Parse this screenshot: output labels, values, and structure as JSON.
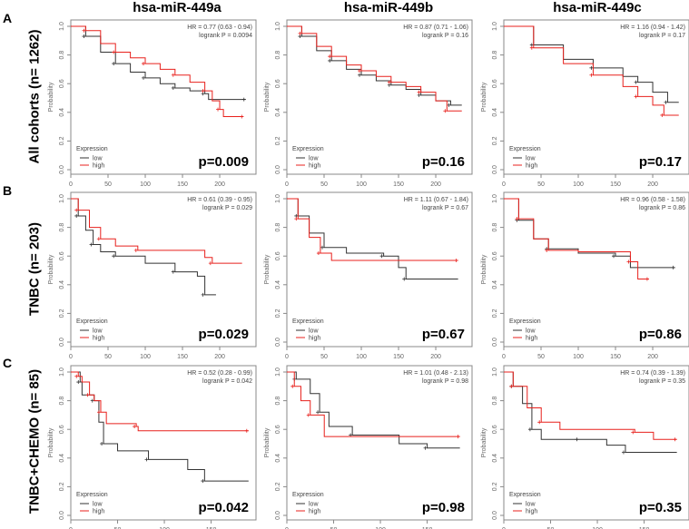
{
  "columns": [
    "hsa-miR-449a",
    "hsa-miR-449b",
    "hsa-miR-449c"
  ],
  "rows": [
    {
      "letter": "A",
      "label": "All cohorts (n= 1262)"
    },
    {
      "letter": "B",
      "label": "TNBC (n= 203)"
    },
    {
      "letter": "C",
      "label": "TNBC+CHEMO (n= 85)"
    }
  ],
  "colors": {
    "low": "#333333",
    "high": "#e8201c"
  },
  "chart_data": [
    {
      "type": "line",
      "row": 0,
      "col": 0,
      "hr": "HR = 0.77 (0.63 - 0.94)",
      "logrank": "logrank P = 0.0094",
      "p": "p=0.009",
      "xticks": [
        0,
        50,
        100,
        150,
        200
      ],
      "xlim": [
        0,
        245
      ],
      "low": [
        [
          0,
          1
        ],
        [
          20,
          0.93
        ],
        [
          40,
          0.82
        ],
        [
          60,
          0.74
        ],
        [
          80,
          0.68
        ],
        [
          100,
          0.64
        ],
        [
          120,
          0.6
        ],
        [
          140,
          0.57
        ],
        [
          160,
          0.55
        ],
        [
          180,
          0.53
        ],
        [
          185,
          0.49
        ],
        [
          235,
          0.49
        ]
      ],
      "high": [
        [
          0,
          1
        ],
        [
          20,
          0.97
        ],
        [
          40,
          0.88
        ],
        [
          60,
          0.82
        ],
        [
          80,
          0.78
        ],
        [
          100,
          0.74
        ],
        [
          120,
          0.7
        ],
        [
          140,
          0.66
        ],
        [
          160,
          0.61
        ],
        [
          180,
          0.55
        ],
        [
          190,
          0.48
        ],
        [
          200,
          0.42
        ],
        [
          205,
          0.37
        ],
        [
          232,
          0.37
        ]
      ]
    },
    {
      "type": "line",
      "row": 0,
      "col": 1,
      "hr": "HR = 0.87 (0.71 - 1.06)",
      "logrank": "logrank P = 0.16",
      "p": "p=0.16",
      "xticks": [
        0,
        50,
        100,
        150,
        200
      ],
      "xlim": [
        0,
        245
      ],
      "low": [
        [
          0,
          1
        ],
        [
          20,
          0.93
        ],
        [
          40,
          0.83
        ],
        [
          60,
          0.76
        ],
        [
          80,
          0.7
        ],
        [
          100,
          0.66
        ],
        [
          120,
          0.62
        ],
        [
          140,
          0.59
        ],
        [
          160,
          0.56
        ],
        [
          180,
          0.52
        ],
        [
          200,
          0.48
        ],
        [
          220,
          0.45
        ],
        [
          235,
          0.45
        ]
      ],
      "high": [
        [
          0,
          1
        ],
        [
          20,
          0.95
        ],
        [
          40,
          0.86
        ],
        [
          60,
          0.79
        ],
        [
          80,
          0.73
        ],
        [
          100,
          0.69
        ],
        [
          120,
          0.65
        ],
        [
          140,
          0.61
        ],
        [
          160,
          0.58
        ],
        [
          180,
          0.54
        ],
        [
          200,
          0.48
        ],
        [
          215,
          0.41
        ],
        [
          235,
          0.41
        ]
      ]
    },
    {
      "type": "line",
      "row": 0,
      "col": 2,
      "hr": "HR = 1.16 (0.94 - 1.42)",
      "logrank": "logrank P = 0.17",
      "p": "p=0.17",
      "xticks": [
        0,
        50,
        100,
        150,
        200
      ],
      "xlim": [
        0,
        245
      ],
      "low": [
        [
          0,
          1
        ],
        [
          40,
          0.87
        ],
        [
          80,
          0.77
        ],
        [
          120,
          0.71
        ],
        [
          160,
          0.65
        ],
        [
          180,
          0.61
        ],
        [
          200,
          0.54
        ],
        [
          220,
          0.47
        ],
        [
          235,
          0.47
        ]
      ],
      "high": [
        [
          0,
          1
        ],
        [
          40,
          0.85
        ],
        [
          80,
          0.74
        ],
        [
          120,
          0.66
        ],
        [
          160,
          0.58
        ],
        [
          180,
          0.51
        ],
        [
          200,
          0.45
        ],
        [
          215,
          0.38
        ],
        [
          235,
          0.38
        ]
      ]
    },
    {
      "type": "line",
      "row": 1,
      "col": 0,
      "hr": "HR = 0.61 (0.39 - 0.95)",
      "logrank": "logrank P = 0.029",
      "p": "p=0.029",
      "xticks": [
        0,
        50,
        100,
        150,
        200
      ],
      "xlim": [
        0,
        245
      ],
      "low": [
        [
          0,
          1
        ],
        [
          10,
          0.88
        ],
        [
          20,
          0.78
        ],
        [
          30,
          0.68
        ],
        [
          40,
          0.63
        ],
        [
          60,
          0.6
        ],
        [
          100,
          0.55
        ],
        [
          140,
          0.49
        ],
        [
          170,
          0.46
        ],
        [
          180,
          0.33
        ],
        [
          195,
          0.33
        ]
      ],
      "high": [
        [
          0,
          1
        ],
        [
          10,
          0.92
        ],
        [
          25,
          0.8
        ],
        [
          40,
          0.72
        ],
        [
          60,
          0.67
        ],
        [
          90,
          0.64
        ],
        [
          180,
          0.59
        ],
        [
          190,
          0.55
        ],
        [
          230,
          0.55
        ]
      ]
    },
    {
      "type": "line",
      "row": 1,
      "col": 1,
      "hr": "HR = 1.11 (0.67 - 1.84)",
      "logrank": "logrank P = 0.67",
      "p": "p=0.67",
      "xticks": [
        0,
        50,
        100,
        150,
        200
      ],
      "xlim": [
        0,
        245
      ],
      "low": [
        [
          0,
          1
        ],
        [
          15,
          0.88
        ],
        [
          30,
          0.76
        ],
        [
          50,
          0.66
        ],
        [
          80,
          0.62
        ],
        [
          130,
          0.6
        ],
        [
          150,
          0.52
        ],
        [
          160,
          0.44
        ],
        [
          230,
          0.44
        ]
      ],
      "high": [
        [
          0,
          1
        ],
        [
          15,
          0.86
        ],
        [
          30,
          0.73
        ],
        [
          45,
          0.62
        ],
        [
          60,
          0.57
        ],
        [
          230,
          0.57
        ]
      ]
    },
    {
      "type": "line",
      "row": 1,
      "col": 2,
      "hr": "HR = 0.96 (0.58 - 1.58)",
      "logrank": "logrank P = 0.86",
      "p": "p=0.86",
      "xticks": [
        0,
        50,
        100,
        150,
        200
      ],
      "xlim": [
        0,
        245
      ],
      "low": [
        [
          0,
          1
        ],
        [
          20,
          0.85
        ],
        [
          40,
          0.72
        ],
        [
          60,
          0.65
        ],
        [
          100,
          0.62
        ],
        [
          150,
          0.6
        ],
        [
          170,
          0.52
        ],
        [
          230,
          0.52
        ]
      ],
      "high": [
        [
          0,
          1
        ],
        [
          20,
          0.86
        ],
        [
          40,
          0.72
        ],
        [
          60,
          0.64
        ],
        [
          100,
          0.63
        ],
        [
          170,
          0.56
        ],
        [
          180,
          0.44
        ],
        [
          195,
          0.44
        ]
      ]
    },
    {
      "type": "line",
      "row": 2,
      "col": 0,
      "hr": "HR = 0.52 (0.28 - 0.99)",
      "logrank": "logrank P = 0.042",
      "p": "p=0.042",
      "xticks": [
        0,
        50,
        100,
        150
      ],
      "xlim": [
        0,
        195
      ],
      "low": [
        [
          0,
          1
        ],
        [
          10,
          0.93
        ],
        [
          12,
          0.84
        ],
        [
          25,
          0.8
        ],
        [
          30,
          0.65
        ],
        [
          35,
          0.5
        ],
        [
          50,
          0.45
        ],
        [
          83,
          0.39
        ],
        [
          125,
          0.32
        ],
        [
          143,
          0.24
        ],
        [
          190,
          0.24
        ]
      ],
      "high": [
        [
          0,
          1
        ],
        [
          8,
          0.97
        ],
        [
          12,
          0.93
        ],
        [
          20,
          0.84
        ],
        [
          25,
          0.8
        ],
        [
          32,
          0.72
        ],
        [
          38,
          0.64
        ],
        [
          70,
          0.62
        ],
        [
          72,
          0.59
        ],
        [
          190,
          0.59
        ]
      ]
    },
    {
      "type": "line",
      "row": 2,
      "col": 1,
      "hr": "HR = 1.01 (0.48 - 2.13)",
      "logrank": "logrank P = 0.98",
      "p": "p=0.98",
      "xticks": [
        0,
        50,
        100,
        150
      ],
      "xlim": [
        0,
        195
      ],
      "low": [
        [
          0,
          1
        ],
        [
          10,
          0.95
        ],
        [
          25,
          0.85
        ],
        [
          35,
          0.72
        ],
        [
          45,
          0.62
        ],
        [
          70,
          0.56
        ],
        [
          120,
          0.5
        ],
        [
          150,
          0.47
        ],
        [
          185,
          0.47
        ]
      ],
      "high": [
        [
          0,
          1
        ],
        [
          8,
          0.9
        ],
        [
          15,
          0.8
        ],
        [
          25,
          0.7
        ],
        [
          40,
          0.55
        ],
        [
          185,
          0.55
        ]
      ]
    },
    {
      "type": "line",
      "row": 2,
      "col": 2,
      "hr": "HR = 0.74 (0.39 - 1.39)",
      "logrank": "logrank P = 0.35",
      "p": "p=0.35",
      "xticks": [
        0,
        50,
        100,
        150
      ],
      "xlim": [
        0,
        195
      ],
      "low": [
        [
          0,
          1
        ],
        [
          10,
          0.9
        ],
        [
          20,
          0.78
        ],
        [
          30,
          0.6
        ],
        [
          40,
          0.53
        ],
        [
          80,
          0.53
        ],
        [
          110,
          0.49
        ],
        [
          130,
          0.44
        ],
        [
          185,
          0.44
        ]
      ],
      "high": [
        [
          0,
          1
        ],
        [
          10,
          0.9
        ],
        [
          25,
          0.75
        ],
        [
          40,
          0.65
        ],
        [
          60,
          0.6
        ],
        [
          140,
          0.58
        ],
        [
          160,
          0.53
        ],
        [
          185,
          0.53
        ]
      ]
    }
  ],
  "axis": {
    "ylabel": "Probability",
    "yticks": [
      "0.0",
      "0.2",
      "0.4",
      "0.6",
      "0.8",
      "1.0"
    ],
    "ylim": [
      0,
      1
    ]
  },
  "legend": {
    "title": "Expression",
    "low": "low",
    "high": "high"
  }
}
